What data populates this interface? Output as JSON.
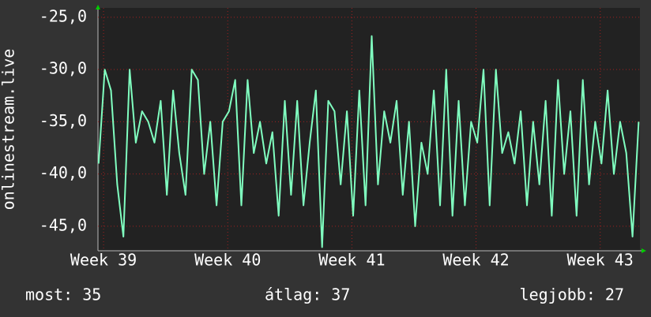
{
  "chart_data": {
    "type": "line",
    "y_label": "onlinestream.live",
    "x": [
      38.96,
      39.01,
      39.06,
      39.11,
      39.16,
      39.21,
      39.26,
      39.31,
      39.36,
      39.41,
      39.46,
      39.51,
      39.56,
      39.61,
      39.66,
      39.71,
      39.76,
      39.81,
      39.86,
      39.91,
      39.96,
      40.01,
      40.06,
      40.11,
      40.16,
      40.21,
      40.26,
      40.31,
      40.36,
      40.41,
      40.46,
      40.51,
      40.56,
      40.61,
      40.66,
      40.71,
      40.76,
      40.81,
      40.86,
      40.91,
      40.96,
      41.01,
      41.06,
      41.11,
      41.16,
      41.21,
      41.26,
      41.31,
      41.36,
      41.41,
      41.46,
      41.51,
      41.56,
      41.61,
      41.66,
      41.71,
      41.76,
      41.81,
      41.86,
      41.91,
      41.96,
      42.01,
      42.06,
      42.11,
      42.16,
      42.21,
      42.26,
      42.31,
      42.36,
      42.41,
      42.46,
      42.51,
      42.56,
      42.61,
      42.66,
      42.71,
      42.76,
      42.81,
      42.86,
      42.91,
      42.96,
      43.01,
      43.06,
      43.11,
      43.16,
      43.21,
      43.26,
      43.31
    ],
    "series": [
      {
        "color": "#80ffc0",
        "values": [
          -39,
          -30,
          -32,
          -41,
          -46,
          -30,
          -37,
          -34,
          -35,
          -37,
          -33,
          -42,
          -32,
          -38,
          -42,
          -30,
          -31,
          -40,
          -35,
          -43,
          -35,
          -34,
          -31,
          -43,
          -31,
          -38,
          -35,
          -39,
          -36,
          -44,
          -33,
          -42,
          -33,
          -43,
          -37,
          -32,
          -47,
          -33,
          -34,
          -41,
          -34,
          -44,
          -32,
          -43,
          -26.8,
          -41,
          -34,
          -37,
          -33,
          -42,
          -35,
          -45,
          -37,
          -40,
          -32,
          -43,
          -30,
          -44,
          -33,
          -43,
          -35,
          -37,
          -30,
          -43,
          -30,
          -38,
          -36,
          -39,
          -34,
          -43,
          -35,
          -41,
          -33,
          -44,
          -31,
          -40,
          -34,
          -44,
          -31,
          -41,
          -35,
          -39,
          -32,
          -40,
          -35,
          -38,
          -46,
          -35
        ]
      }
    ],
    "xlim": [
      38.955,
      43.32
    ],
    "ylim": [
      -47.35,
      -24.1
    ],
    "xticks": [
      {
        "value": 39,
        "label": "Week 39"
      },
      {
        "value": 40,
        "label": "Week 40"
      },
      {
        "value": 41,
        "label": "Week 41"
      },
      {
        "value": 42,
        "label": "Week 42"
      },
      {
        "value": 43,
        "label": "Week 43"
      }
    ],
    "yticks": [
      {
        "value": -45,
        "label": "-45,0"
      },
      {
        "value": -40,
        "label": "-40,0"
      },
      {
        "value": -35,
        "label": "-35,0"
      },
      {
        "value": -30,
        "label": "-30,0"
      },
      {
        "value": -25,
        "label": "-25,0"
      }
    ],
    "grid": true,
    "legend": [
      "most: 35",
      "átlag: 37",
      "legjobb: 27"
    ]
  }
}
